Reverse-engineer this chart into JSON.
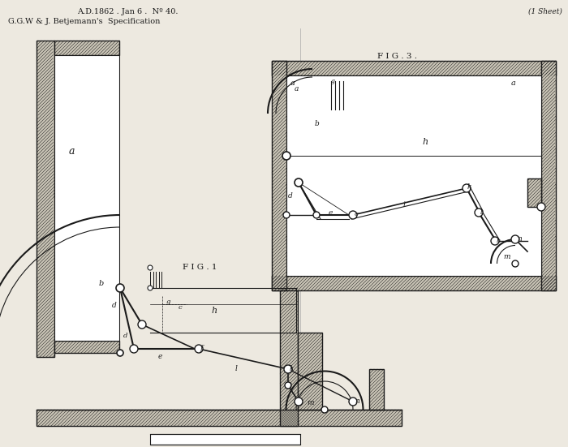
{
  "title_line1": "A.D.1862 . Jan 6 .  Nº 40.",
  "title_line2": "G.G.W & J. Betjemann's  Specification",
  "sheet_label": "(1 Sheet)",
  "fig1_label": "F I G . 1",
  "fig3_label": "F I G . 3 .",
  "background_color": "#ede9e0",
  "line_color": "#1a1a1a",
  "hatch_bg": "#c8c3b5",
  "fig_width": 7.0,
  "fig_height": 5.51
}
